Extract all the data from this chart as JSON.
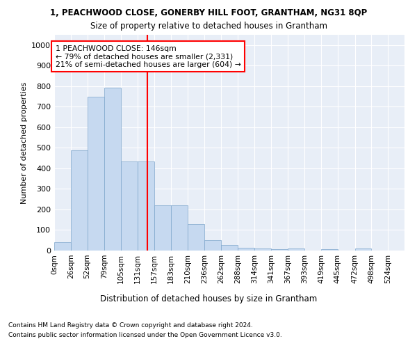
{
  "title1": "1, PEACHWOOD CLOSE, GONERBY HILL FOOT, GRANTHAM, NG31 8QP",
  "title2": "Size of property relative to detached houses in Grantham",
  "xlabel": "Distribution of detached houses by size in Grantham",
  "ylabel": "Number of detached properties",
  "bin_labels": [
    "0sqm",
    "26sqm",
    "52sqm",
    "79sqm",
    "105sqm",
    "131sqm",
    "157sqm",
    "183sqm",
    "210sqm",
    "236sqm",
    "262sqm",
    "288sqm",
    "314sqm",
    "341sqm",
    "367sqm",
    "393sqm",
    "419sqm",
    "445sqm",
    "472sqm",
    "498sqm",
    "524sqm"
  ],
  "bar_values": [
    40,
    487,
    748,
    792,
    435,
    435,
    220,
    220,
    128,
    52,
    27,
    15,
    10,
    7,
    10,
    0,
    8,
    0,
    10,
    0,
    0
  ],
  "bar_color": "#c6d9f0",
  "bar_edge_color": "#7da6cb",
  "vline_x": 146,
  "vline_color": "red",
  "annotation_text": "1 PEACHWOOD CLOSE: 146sqm\n← 79% of detached houses are smaller (2,331)\n21% of semi-detached houses are larger (604) →",
  "footnote1": "Contains HM Land Registry data © Crown copyright and database right 2024.",
  "footnote2": "Contains public sector information licensed under the Open Government Licence v3.0.",
  "ylim": [
    0,
    1050
  ],
  "bin_edges": [
    0,
    26,
    52,
    79,
    105,
    131,
    157,
    183,
    210,
    236,
    262,
    288,
    314,
    341,
    367,
    393,
    419,
    445,
    472,
    498,
    524,
    550
  ],
  "plot_bg_color": "#e8eef7",
  "grid_color": "white",
  "yticks": [
    0,
    100,
    200,
    300,
    400,
    500,
    600,
    700,
    800,
    900,
    1000
  ]
}
